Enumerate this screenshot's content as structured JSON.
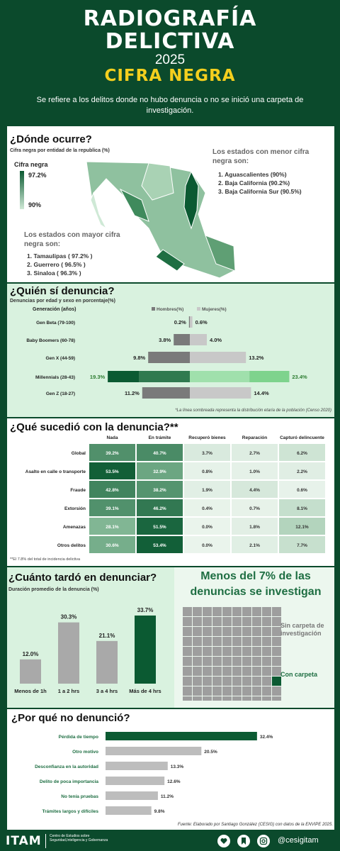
{
  "header": {
    "line1": "RADIOGRAFÍA",
    "line2": "DELICTIVA",
    "year": "2025",
    "cifra": "CIFRA NEGRA",
    "subtitle": "Se refiere a los delitos donde no hubo denuncia o no se inició una carpeta de investigación."
  },
  "donde": {
    "title": "¿Dónde ocurre?",
    "subtitle": "Cifra negra por entidad de la republica (%)",
    "legend_title": "Cifra negra",
    "legend_max": "97.2%",
    "legend_min": "90%",
    "menor_title": "Los estados con menor cifra negra son:",
    "menor_items": [
      "Aguascalientes (90%)",
      "Baja California (90.2%)",
      "Baja California Sur (90.5%)"
    ],
    "mayor_title": "Los estados con mayor cifra negra son:",
    "mayor_items": [
      "Tamaulipas ( 97.2% )",
      "Guerrero ( 96.5% )",
      "Sinaloa ( 96.3% )"
    ],
    "colors": {
      "high": "#0b5a32",
      "low": "#cfe9d6"
    }
  },
  "quien": {
    "title": "¿Quién sí denuncia?",
    "subtitle": "Denuncias por edad y sexo en porcentaje(%)",
    "gen_header": "Generación (años)",
    "legend_h": "Hombres(%)",
    "legend_m": "Mujeres(%)",
    "note": "*La línea sombreada representa la distribución etaria de la población (Censo 2020)",
    "chart_data": {
      "type": "bar",
      "categories": [
        "Gen Beta (79-100)",
        "Baby Boomers (60-78)",
        "Gen X (44-59)",
        "Millennials (28-43)",
        "Gen Z (18-27)"
      ],
      "series": [
        {
          "name": "Hombres(%)",
          "values": [
            0.2,
            3.8,
            9.8,
            19.3,
            11.2
          ]
        },
        {
          "name": "Mujeres(%)",
          "values": [
            0.6,
            4.0,
            13.2,
            23.4,
            14.4
          ]
        }
      ],
      "labels_h": [
        "0.2%",
        "3.8%",
        "9.8%",
        "19.3%",
        "11.2%"
      ],
      "labels_m": [
        "0.6%",
        "4.0%",
        "13.2%",
        "23.4%",
        "14.4%"
      ]
    }
  },
  "que": {
    "title": "¿Qué sucedió con la denuncia?**",
    "note": "**El 7.8% del total de incidencia delictiva",
    "chart_data": {
      "type": "heatmap",
      "columns": [
        "Nada",
        "En trámite",
        "Recuperó bienes",
        "Reparación",
        "Capturó delincuente"
      ],
      "rows": [
        "Global",
        "Asalto en calle o transporte",
        "Fraude",
        "Extorsión",
        "Amenazas",
        "Otros delitos"
      ],
      "values": [
        [
          39.2,
          40.7,
          3.7,
          2.7,
          6.2
        ],
        [
          53.5,
          32.9,
          0.8,
          1.0,
          2.2
        ],
        [
          42.8,
          38.2,
          1.9,
          4.4,
          0.6
        ],
        [
          39.1,
          46.2,
          0.4,
          0.7,
          8.1
        ],
        [
          28.1,
          51.5,
          0.0,
          1.8,
          12.1
        ],
        [
          30.6,
          53.4,
          0.0,
          2.1,
          7.7
        ]
      ],
      "labels": [
        [
          "39.2%",
          "40.7%",
          "3.7%",
          "2.7%",
          "6.2%"
        ],
        [
          "53.5%",
          "32.9%",
          "0.8%",
          "1.0%",
          "2.2%"
        ],
        [
          "42.8%",
          "38.2%",
          "1.9%",
          "4.4%",
          "0.6%"
        ],
        [
          "39.1%",
          "46.2%",
          "0.4%",
          "0.7%",
          "8.1%"
        ],
        [
          "28.1%",
          "51.5%",
          "0.0%",
          "1.8%",
          "12.1%"
        ],
        [
          "30.6%",
          "53.4%",
          "0.0%",
          "2.1%",
          "7.7%"
        ]
      ]
    }
  },
  "cuanto": {
    "title": "¿Cuánto tardó en denunciar?",
    "subtitle": "Duración promedio de la denuncia  (%)",
    "chart_data": {
      "type": "bar",
      "categories": [
        "Menos de 1h",
        "1 a 2 hrs",
        "3 a 4 hrs",
        "Más de 4 hrs"
      ],
      "values": [
        12.0,
        30.3,
        21.1,
        33.7
      ],
      "labels": [
        "12.0%",
        "30.3%",
        "21.1%",
        "33.7%"
      ],
      "highlight": 3
    }
  },
  "investigan": {
    "title": "Menos del 7% de las denuncias se investigan",
    "sin": "Sin carpeta de investigación",
    "con": "Con carpeta",
    "chart_data": {
      "type": "waffle",
      "total": 100,
      "con_carpeta": 1,
      "grid": [
        10,
        10
      ]
    }
  },
  "porque": {
    "title": "¿Por qué no denunció?",
    "source": "Fuente: Elaborado por Santiago González (CESIG) con datos de la ENVIPE 2025.",
    "chart_data": {
      "type": "bar",
      "orientation": "horizontal",
      "categories": [
        "Pérdida de tiempo",
        "Otro motivo",
        "Desconfianza en la autoridad",
        "Delito de poca importancia",
        "No tenía pruebas",
        "Trámites largos y difíciles"
      ],
      "values": [
        32.4,
        20.5,
        13.3,
        12.6,
        11.2,
        9.8
      ],
      "labels": [
        "32.4%",
        "20.5%",
        "13.3%",
        "12.6%",
        "11.2%",
        "9.8%"
      ]
    }
  },
  "footer": {
    "logo": "ITAM",
    "center": "Centro de Estudios sobre Seguridad,Inteligencia y Gobernanza",
    "handle": "@cesigitam",
    "icons": [
      "heart-icon",
      "bookmark-icon",
      "instagram-icon"
    ]
  }
}
